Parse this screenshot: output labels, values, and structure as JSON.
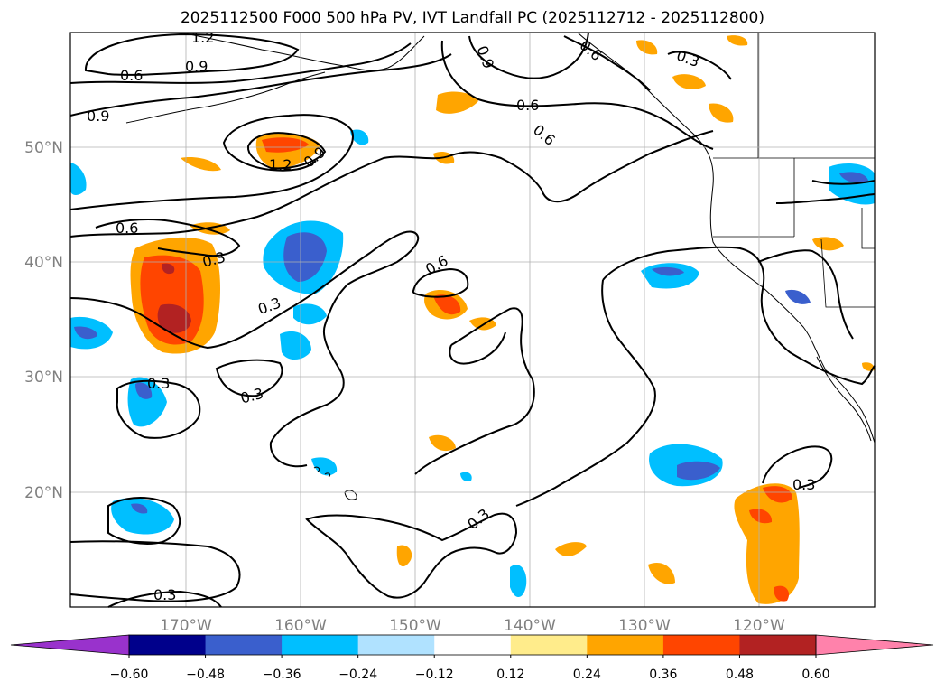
{
  "title": "2025112500 F000 500 hPa PV, IVT Landfall PC (2025112712 - 2025112800)",
  "lon_labels": [
    "170°W",
    "160°W",
    "150°W",
    "140°W",
    "130°W",
    "120°W"
  ],
  "lat_labels": [
    "50°N",
    "40°N",
    "30°N",
    "20°N"
  ],
  "contour_labels": [
    "1.2",
    "0.9",
    "0.6",
    "0.9",
    "0.6",
    "0.9",
    "0.3",
    "0.6",
    "0.6",
    "1.2",
    "0.9",
    "0.6",
    "0.3",
    "0.6",
    "0.3",
    "0.3",
    "0.3",
    "0.3",
    "0.3",
    "0.3"
  ],
  "colorbar": {
    "ticks": [
      "−0.60",
      "−0.48",
      "−0.36",
      "−0.24",
      "−0.12",
      "0.12",
      "0.24",
      "0.36",
      "0.48",
      "0.60"
    ],
    "colors": [
      "#9932cc",
      "#00008b",
      "#3a5fcd",
      "#00bfff",
      "#b0e2ff",
      "#ffffff",
      "#ffec8b",
      "#ffa500",
      "#ff4500",
      "#b22222",
      "#ff82ab"
    ]
  },
  "fill_colors": {
    "blue_light": "#00bfff",
    "blue_mid": "#3a5fcd",
    "orange": "#ffa500",
    "red_orange": "#ff4500",
    "dark_red": "#b22222"
  }
}
